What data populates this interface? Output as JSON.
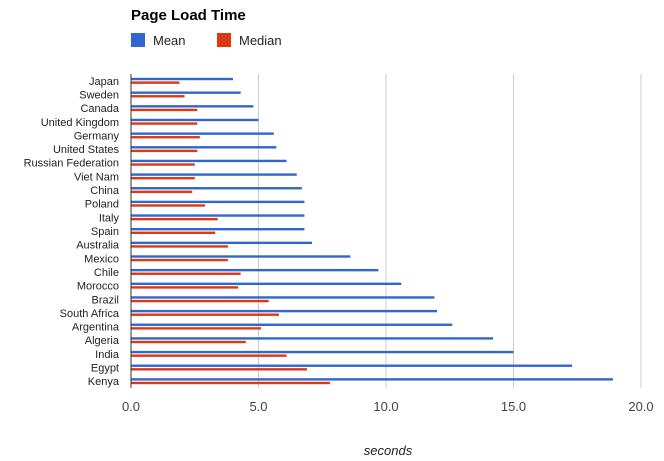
{
  "chart_data": {
    "type": "bar",
    "orientation": "horizontal",
    "title": "Page Load Time",
    "xlabel": "seconds",
    "ylabel": "",
    "xlim": [
      0,
      20
    ],
    "x_ticks": [
      "0.0",
      "5.0",
      "10.0",
      "15.0",
      "20.0"
    ],
    "grid": true,
    "legend_position": "top-left",
    "categories": [
      "Japan",
      "Sweden",
      "Canada",
      "United Kingdom",
      "Germany",
      "United States",
      "Russian Federation",
      "Viet Nam",
      "China",
      "Poland",
      "Italy",
      "Spain",
      "Australia",
      "Mexico",
      "Chile",
      "Morocco",
      "Brazil",
      "South Africa",
      "Argentina",
      "Algeria",
      "India",
      "Egypt",
      "Kenya"
    ],
    "series": [
      {
        "name": "Mean",
        "color": "#3366cc",
        "values": [
          4.0,
          4.3,
          4.8,
          5.0,
          5.6,
          5.7,
          6.1,
          6.5,
          6.7,
          6.8,
          6.8,
          6.8,
          7.1,
          8.6,
          9.7,
          10.6,
          11.9,
          12.0,
          12.6,
          14.2,
          15.0,
          17.3,
          18.9
        ]
      },
      {
        "name": "Median",
        "color": "#dc3912",
        "values": [
          1.9,
          2.1,
          2.6,
          2.6,
          2.7,
          2.6,
          2.5,
          2.5,
          2.4,
          2.9,
          3.4,
          3.3,
          3.8,
          3.8,
          4.3,
          4.2,
          5.4,
          5.8,
          5.1,
          4.5,
          6.1,
          6.9,
          7.8
        ]
      }
    ]
  }
}
